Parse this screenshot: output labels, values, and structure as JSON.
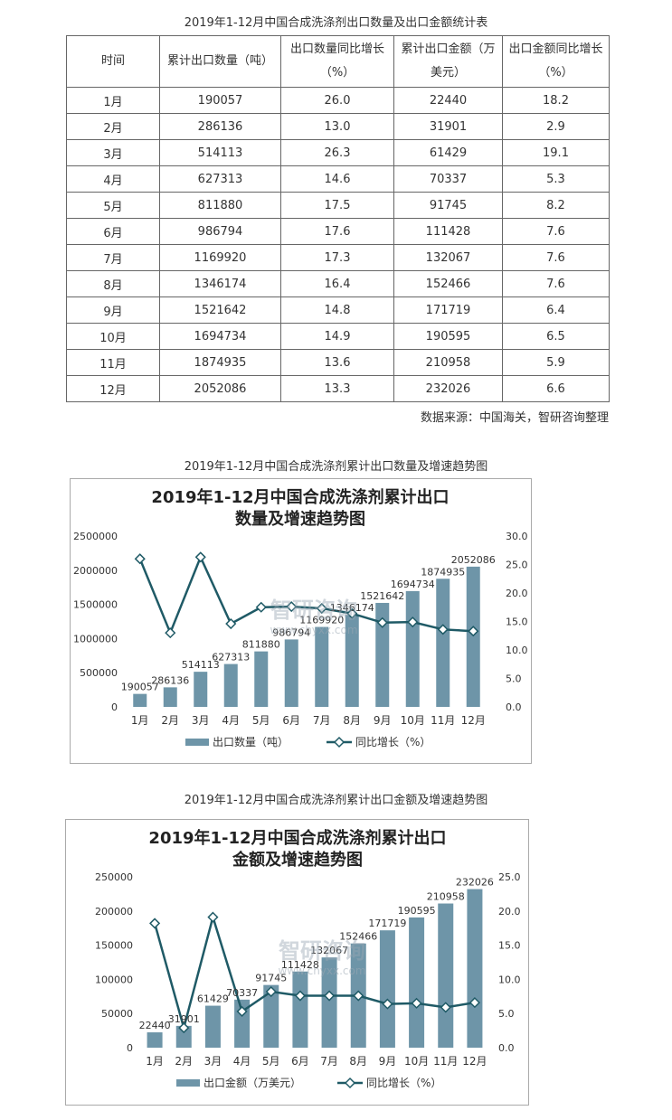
{
  "table": {
    "title": "2019年1-12月中国合成洗涤剂出口数量及出口金额统计表",
    "headers": [
      "时间",
      "累计出口数量（吨）",
      "出口数量同比增长\n（%）",
      "累计出口金额（万\n美元）",
      "出口金额同比增长\n（%）"
    ],
    "rows": [
      [
        "1月",
        "190057",
        "26.0",
        "22440",
        "18.2"
      ],
      [
        "2月",
        "286136",
        "13.0",
        "31901",
        "2.9"
      ],
      [
        "3月",
        "514113",
        "26.3",
        "61429",
        "19.1"
      ],
      [
        "4月",
        "627313",
        "14.6",
        "70337",
        "5.3"
      ],
      [
        "5月",
        "811880",
        "17.5",
        "91745",
        "8.2"
      ],
      [
        "6月",
        "986794",
        "17.6",
        "111428",
        "7.6"
      ],
      [
        "7月",
        "1169920",
        "17.3",
        "132067",
        "7.6"
      ],
      [
        "8月",
        "1346174",
        "16.4",
        "152466",
        "7.6"
      ],
      [
        "9月",
        "1521642",
        "14.8",
        "171719",
        "6.4"
      ],
      [
        "10月",
        "1694734",
        "14.9",
        "190595",
        "6.5"
      ],
      [
        "11月",
        "1874935",
        "13.6",
        "210958",
        "5.9"
      ],
      [
        "12月",
        "2052086",
        "13.3",
        "232026",
        "6.6"
      ]
    ],
    "source": "数据来源：中国海关，智研咨询整理"
  },
  "watermark": {
    "name": "智研咨询",
    "url": "www.chyxx.com"
  },
  "colors": {
    "bar": "#6e95a8",
    "line": "#1f5a66",
    "marker_fill": "#ffffff"
  },
  "chart_data": [
    {
      "type": "bar",
      "caption": "2019年1-12月中国合成洗涤剂累计出口数量及增速趋势图",
      "title": "2019年1-12月中国合成洗涤剂累计出口数量及增速趋势图",
      "categories": [
        "1月",
        "2月",
        "3月",
        "4月",
        "5月",
        "6月",
        "7月",
        "8月",
        "9月",
        "10月",
        "11月",
        "12月"
      ],
      "series": [
        {
          "name": "出口数量（吨）",
          "type": "bar",
          "axis": "left",
          "values": [
            190057,
            286136,
            514113,
            627313,
            811880,
            986794,
            1169920,
            1346174,
            1521642,
            1694734,
            1874935,
            2052086
          ]
        },
        {
          "name": "同比增长（%）",
          "type": "line",
          "axis": "right",
          "values": [
            26.0,
            13.0,
            26.3,
            14.6,
            17.5,
            17.6,
            17.3,
            16.4,
            14.8,
            14.9,
            13.6,
            13.3
          ]
        }
      ],
      "y_left": {
        "min": 0,
        "max": 2500000,
        "ticks": [
          "0",
          "500000",
          "1000000",
          "1500000",
          "2000000",
          "2500000"
        ]
      },
      "y_right": {
        "min": 0,
        "max": 30,
        "ticks": [
          "0.0",
          "5.0",
          "10.0",
          "15.0",
          "20.0",
          "25.0",
          "30.0"
        ]
      },
      "legend": "bottom",
      "grid": false
    },
    {
      "type": "bar",
      "caption": "2019年1-12月中国合成洗涤剂累计出口金额及增速趋势图",
      "title": "2019年1-12月中国合成洗涤剂累计出口金额及增速趋势图",
      "categories": [
        "1月",
        "2月",
        "3月",
        "4月",
        "5月",
        "6月",
        "7月",
        "8月",
        "9月",
        "10月",
        "11月",
        "12月"
      ],
      "series": [
        {
          "name": "出口金额（万美元）",
          "type": "bar",
          "axis": "left",
          "values": [
            22440,
            31901,
            61429,
            70337,
            91745,
            111428,
            132067,
            152466,
            171719,
            190595,
            210958,
            232026
          ]
        },
        {
          "name": "同比增长（%）",
          "type": "line",
          "axis": "right",
          "values": [
            18.2,
            2.9,
            19.1,
            5.3,
            8.2,
            7.6,
            7.6,
            7.6,
            6.4,
            6.5,
            5.9,
            6.6
          ]
        }
      ],
      "y_left": {
        "min": 0,
        "max": 250000,
        "ticks": [
          "0",
          "50000",
          "100000",
          "150000",
          "200000",
          "250000"
        ]
      },
      "y_right": {
        "min": 0,
        "max": 25,
        "ticks": [
          "0.0",
          "5.0",
          "10.0",
          "15.0",
          "20.0",
          "25.0"
        ]
      },
      "legend": "bottom",
      "grid": false
    }
  ]
}
